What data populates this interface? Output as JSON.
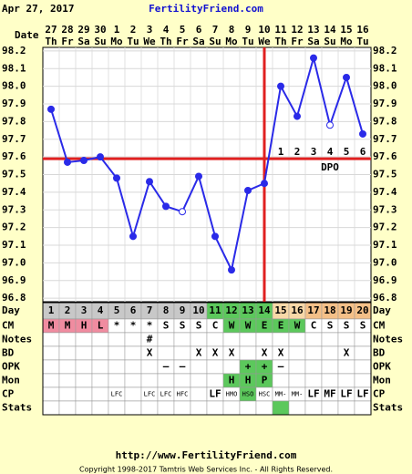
{
  "header": {
    "date": "Apr 27, 2017",
    "site": "FertilityFriend.com"
  },
  "chart_data": {
    "type": "line",
    "date_label": "Date",
    "categories": [
      27,
      28,
      29,
      30,
      1,
      2,
      3,
      4,
      5,
      6,
      7,
      8,
      9,
      10,
      11,
      12,
      13,
      14,
      15,
      16
    ],
    "weekdays": [
      "Th",
      "Fr",
      "Sa",
      "Su",
      "Mo",
      "Tu",
      "We",
      "Th",
      "Fr",
      "Sa",
      "Su",
      "Mo",
      "Tu",
      "We",
      "Th",
      "Fr",
      "Sa",
      "Su",
      "Mo",
      "Tu"
    ],
    "series": [
      {
        "name": "Temperature",
        "color": "#2a2ae8",
        "values": [
          97.87,
          97.57,
          97.58,
          97.6,
          97.48,
          97.15,
          97.46,
          97.32,
          97.29,
          97.49,
          97.15,
          96.96,
          97.41,
          97.45,
          98.0,
          97.83,
          98.16,
          97.78,
          98.05,
          97.73
        ],
        "hollow": [
          8,
          17
        ]
      }
    ],
    "ylim": [
      96.78,
      98.22
    ],
    "yticks": [
      96.8,
      96.9,
      {
        "value": 97,
        "label": "97.0"
      },
      97.1,
      97.2,
      97.3,
      97.4,
      97.5,
      97.6,
      97.7,
      97.8,
      97.9,
      {
        "value": 98,
        "label": "98.0"
      },
      98.1,
      98.2
    ],
    "grid": true,
    "coverline": 97.59,
    "coverline_color": "#e02020",
    "ovulation_index": 13,
    "dpo": {
      "label": "DPO",
      "days": [
        1,
        2,
        3,
        4,
        5,
        6
      ],
      "start_index": 14
    }
  },
  "table": {
    "rows": [
      {
        "label": "Day",
        "cells": [
          1,
          2,
          3,
          4,
          5,
          6,
          7,
          8,
          9,
          10,
          11,
          12,
          13,
          14,
          15,
          16,
          17,
          18,
          19,
          20
        ],
        "colors": [
          "#c8c8c8",
          "#c8c8c8",
          "#c8c8c8",
          "#c8c8c8",
          "#c8c8c8",
          "#c8c8c8",
          "#c8c8c8",
          "#c8c8c8",
          "#c8c8c8",
          "#c8c8c8",
          "#5cc85c",
          "#5cc85c",
          "#5cc85c",
          "#5cc85c",
          "#f8d8a8",
          "#f8d8a8",
          "#f4c088",
          "#f4c088",
          "#f4c088",
          "#f4c088"
        ]
      },
      {
        "label": "CM",
        "cells": [
          "M",
          "M",
          "H",
          "L",
          "*",
          "*",
          "*",
          "S",
          "S",
          "S",
          "C",
          "W",
          "W",
          "E",
          "E",
          "W",
          "C",
          "S",
          "S",
          "S"
        ],
        "colors": [
          "#f08ca0",
          "#f08ca0",
          "#f08ca0",
          "#f08ca0",
          null,
          null,
          null,
          null,
          null,
          null,
          null,
          "#5cc85c",
          "#5cc85c",
          "#5cc85c",
          "#5cc85c",
          "#5cc85c",
          null,
          null,
          null,
          null
        ]
      },
      {
        "label": "Notes",
        "cells": [
          null,
          null,
          null,
          null,
          null,
          null,
          "#",
          null,
          null,
          null,
          null,
          null,
          null,
          null,
          null,
          null,
          null,
          null,
          null,
          null
        ]
      },
      {
        "label": "BD",
        "cells": [
          null,
          null,
          null,
          null,
          null,
          null,
          "X",
          null,
          null,
          "X",
          "X",
          "X",
          null,
          "X",
          "X",
          null,
          null,
          null,
          "X",
          null
        ]
      },
      {
        "label": "OPK",
        "cells": [
          null,
          null,
          null,
          null,
          null,
          null,
          null,
          "–",
          "–",
          null,
          null,
          null,
          "+",
          "+",
          "–",
          null,
          null,
          null,
          null,
          null
        ],
        "colors": [
          null,
          null,
          null,
          null,
          null,
          null,
          null,
          null,
          null,
          null,
          null,
          null,
          "#5cc85c",
          "#5cc85c",
          null,
          null,
          null,
          null,
          null,
          null
        ]
      },
      {
        "label": "Mon",
        "cells": [
          null,
          null,
          null,
          null,
          null,
          null,
          null,
          null,
          null,
          null,
          null,
          "H",
          "H",
          "P",
          null,
          null,
          null,
          null,
          null,
          null
        ],
        "colors": [
          null,
          null,
          null,
          null,
          null,
          null,
          null,
          null,
          null,
          null,
          null,
          "#5cc85c",
          "#5cc85c",
          "#5cc85c",
          null,
          null,
          null,
          null,
          null,
          null
        ]
      },
      {
        "label": "CP",
        "cells": [
          null,
          null,
          null,
          null,
          "LFC",
          null,
          "LFC",
          "LFC",
          "HFC",
          null,
          "LF",
          "HMO",
          "HSO",
          "HSC",
          "MM-",
          "MM-",
          "LF",
          "MF",
          "LF",
          "LF"
        ],
        "colors": [
          null,
          null,
          null,
          null,
          null,
          null,
          null,
          null,
          null,
          null,
          null,
          null,
          "#5cc85c",
          null,
          null,
          null,
          null,
          null,
          null,
          null
        ]
      },
      {
        "label": "Stats",
        "cells": [
          null,
          null,
          null,
          null,
          null,
          null,
          null,
          null,
          null,
          null,
          null,
          null,
          null,
          null,
          null,
          null,
          null,
          null,
          null,
          null
        ],
        "colors": [
          null,
          null,
          null,
          null,
          null,
          null,
          null,
          null,
          null,
          null,
          null,
          null,
          null,
          null,
          "#5cc85c",
          null,
          null,
          null,
          null,
          null
        ]
      }
    ]
  },
  "footer": {
    "url": "http://www.FertilityFriend.com",
    "copyright": "Copyright 1998-2017 Tamtris Web Services Inc. - All Rights Reserved."
  }
}
